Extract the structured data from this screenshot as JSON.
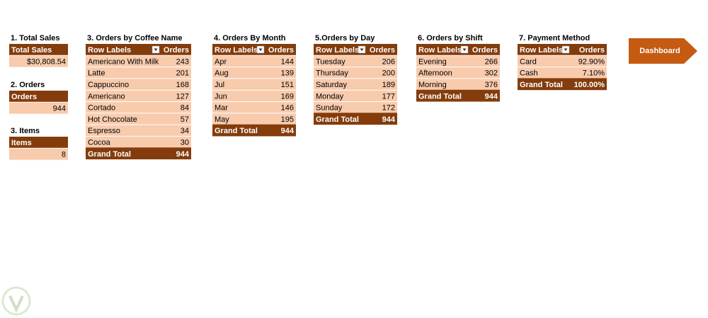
{
  "sections": [
    {
      "title": "1. Total Sales",
      "header": [
        "Total Sales"
      ],
      "rows": [
        [
          "$30,808.54"
        ]
      ]
    },
    {
      "title": "2. Orders",
      "header": [
        "Orders"
      ],
      "rows": [
        [
          944
        ]
      ]
    },
    {
      "title": "3. Items",
      "header": [
        "Items"
      ],
      "rows": [
        [
          8
        ]
      ]
    },
    {
      "title": "3. Orders by Coffee Name",
      "header": [
        "Row Labels",
        "Orders"
      ],
      "rows": [
        [
          "Americano With Milk",
          243
        ],
        [
          "Latte",
          201
        ],
        [
          "Cappuccino",
          168
        ],
        [
          "Americano",
          127
        ],
        [
          "Cortado",
          84
        ],
        [
          "Hot Chocolate",
          57
        ],
        [
          "Espresso",
          34
        ],
        [
          "Cocoa",
          30
        ]
      ],
      "total": [
        "Grand Total",
        944
      ]
    },
    {
      "title": "4. Orders By Month",
      "header": [
        "Row Labels",
        "Orders"
      ],
      "rows": [
        [
          "Apr",
          144
        ],
        [
          "Aug",
          139
        ],
        [
          "Jul",
          151
        ],
        [
          "Jun",
          169
        ],
        [
          "Mar",
          146
        ],
        [
          "May",
          195
        ]
      ],
      "total": [
        "Grand Total",
        944
      ]
    },
    {
      "title": "5.Orders by Day",
      "header": [
        "Row Labels",
        "Orders"
      ],
      "rows": [
        [
          "Tuesday",
          206
        ],
        [
          "Thursday",
          200
        ],
        [
          "Saturday",
          189
        ],
        [
          "Monday",
          177
        ],
        [
          "Sunday",
          172
        ]
      ],
      "total": [
        "Grand Total",
        944
      ]
    },
    {
      "title": "6. Orders by Shift",
      "header": [
        "Row Labels",
        "Orders"
      ],
      "rows": [
        [
          "Evening",
          266
        ],
        [
          "Afternoon",
          302
        ],
        [
          "Morning",
          376
        ]
      ],
      "total": [
        "Grand Total",
        944
      ]
    },
    {
      "title": "7. Payment Method",
      "header": [
        "Row Labels",
        "Orders"
      ],
      "rows": [
        [
          "Card",
          "92.90%"
        ],
        [
          "Cash",
          "7.10%"
        ]
      ],
      "total": [
        "Grand Total",
        "100.00%"
      ]
    }
  ],
  "button": "Dashboard"
}
